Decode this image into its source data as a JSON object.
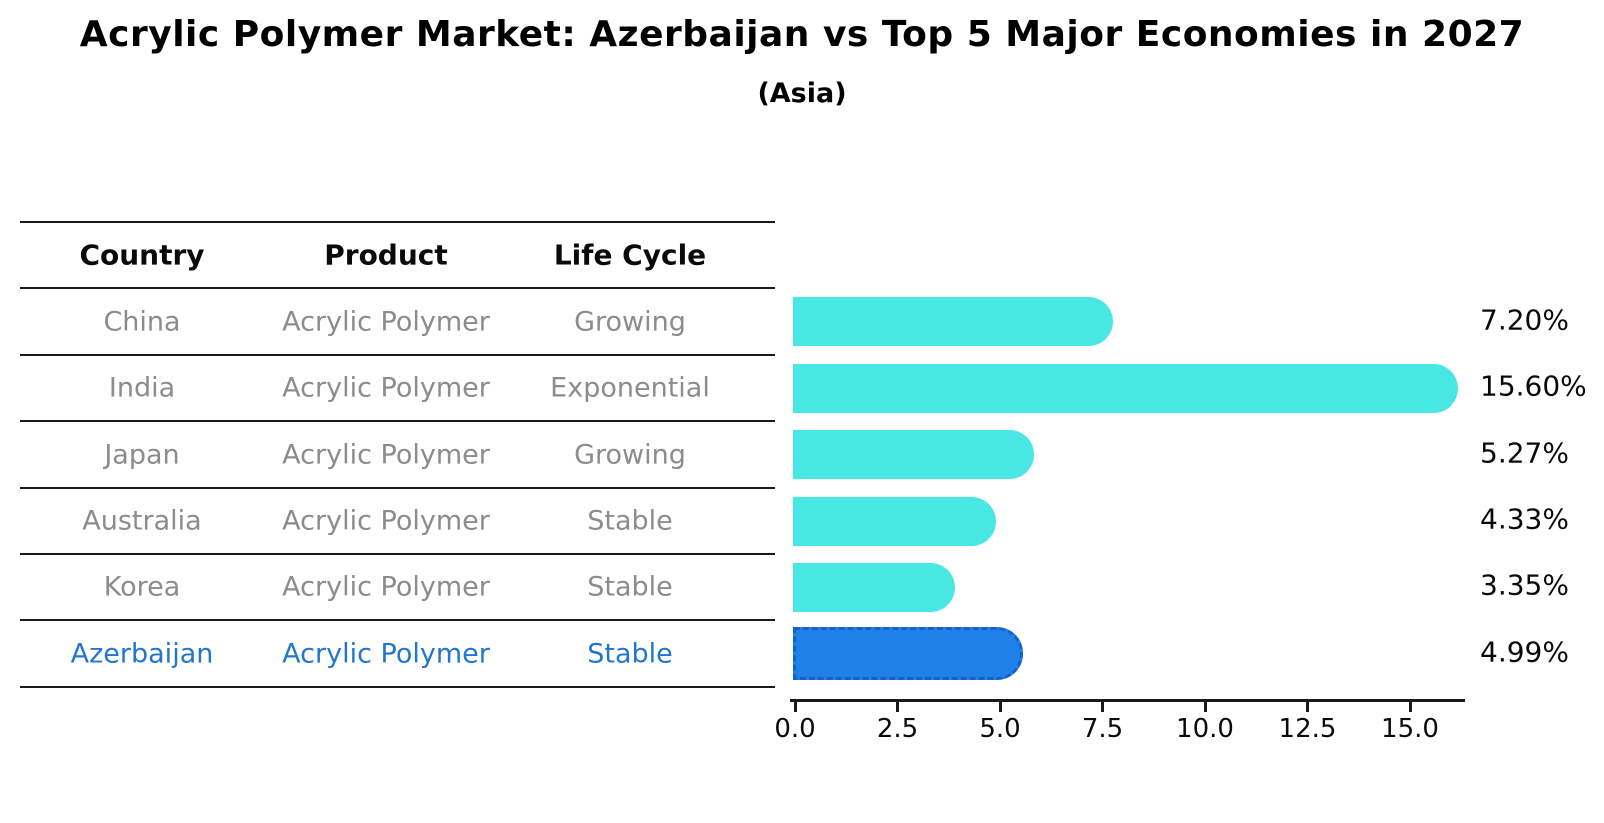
{
  "chart_data": {
    "type": "bar",
    "orientation": "horizontal",
    "title": "Acrylic Polymer Market: Azerbaijan vs Top 5 Major Economies in 2027",
    "subtitle": "(Asia)",
    "categories": [
      "China",
      "India",
      "Japan",
      "Australia",
      "Korea",
      "Azerbaijan"
    ],
    "values": [
      7.2,
      15.6,
      5.27,
      4.33,
      3.35,
      4.99
    ],
    "value_labels": [
      "7.20%",
      "15.60%",
      "5.27%",
      "4.33%",
      "3.35%",
      "4.99%"
    ],
    "x_ticks": [
      "0.0",
      "2.5",
      "5.0",
      "7.5",
      "10.0",
      "12.5",
      "15.0"
    ],
    "xlim": [
      0,
      16.4
    ],
    "grid": false,
    "legend": false,
    "bar_color": "#48e7e3",
    "highlight_color": "#1f80e8",
    "highlight_index": 5
  },
  "table": {
    "headers": [
      "Country",
      "Product",
      "Life Cycle"
    ],
    "rows": [
      {
        "country": "China",
        "product": "Acrylic Polymer",
        "life_cycle": "Growing",
        "highlight": false
      },
      {
        "country": "India",
        "product": "Acrylic Polymer",
        "life_cycle": "Exponential",
        "highlight": false
      },
      {
        "country": "Japan",
        "product": "Acrylic Polymer",
        "life_cycle": "Growing",
        "highlight": false
      },
      {
        "country": "Australia",
        "product": "Acrylic Polymer",
        "life_cycle": "Stable",
        "highlight": false
      },
      {
        "country": "Korea",
        "product": "Acrylic Polymer",
        "life_cycle": "Stable",
        "highlight": false
      },
      {
        "country": "Azerbaijan",
        "product": "Acrylic Polymer",
        "life_cycle": "Stable",
        "highlight": true
      }
    ]
  },
  "colors": {
    "bar": "#48e7e3",
    "highlight_bar": "#1f80e8",
    "highlight_border": "#1462c8",
    "highlight_text": "#2277cc",
    "row_text": "#8c8c8c",
    "axis": "#1a1a1a"
  }
}
